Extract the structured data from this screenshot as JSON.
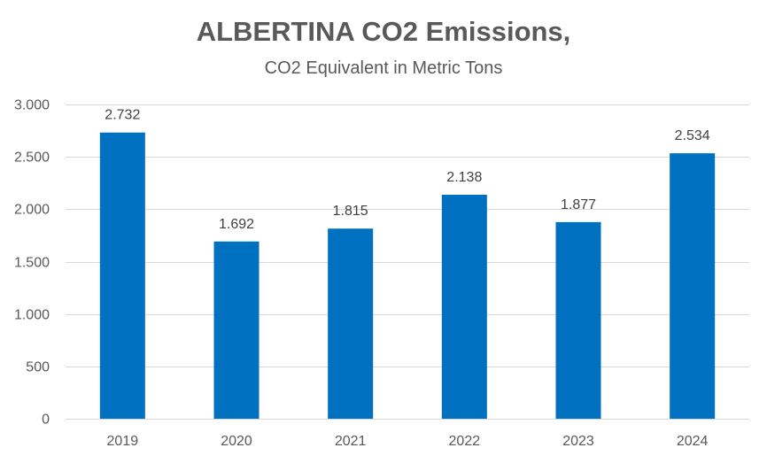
{
  "chart_data": {
    "type": "bar",
    "title": "ALBERTINA CO2 Emissions,",
    "subtitle": "CO2 Equivalent in Metric Tons",
    "xlabel": "",
    "ylabel": "",
    "categories": [
      "2019",
      "2020",
      "2021",
      "2022",
      "2023",
      "2024"
    ],
    "values": [
      2732,
      1692,
      1815,
      2138,
      1877,
      2534
    ],
    "value_labels": [
      "2.732",
      "1.692",
      "1.815",
      "2.138",
      "1.877",
      "2.534"
    ],
    "ylim": [
      0,
      3000
    ],
    "y_ticks": [
      0,
      500,
      1000,
      1500,
      2000,
      2500,
      3000
    ],
    "y_tick_labels": [
      "0",
      "500",
      "1.000",
      "1.500",
      "2.000",
      "2.500",
      "3.000"
    ],
    "grid": true,
    "legend": "none",
    "bar_color": "#0070C0",
    "grid_color": "#D9D9D9"
  }
}
